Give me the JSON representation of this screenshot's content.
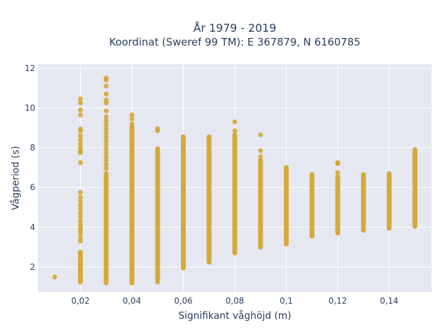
{
  "chart_data": {
    "type": "scatter",
    "title_line1": "År 1979 - 2019",
    "title_line2": "Koordinat (Sweref 99 TM): E 367879, N 6160785",
    "xlabel": "Signifikant våghöjd (m)",
    "ylabel": "Vågperiod (s)",
    "xlim": [
      0.0035,
      0.1565
    ],
    "ylim": [
      0.75,
      12.2
    ],
    "x_ticks": [
      {
        "value": 0.02,
        "label": "0,02"
      },
      {
        "value": 0.04,
        "label": "0,04"
      },
      {
        "value": 0.06,
        "label": "0,06"
      },
      {
        "value": 0.08,
        "label": "0,08"
      },
      {
        "value": 0.1,
        "label": "0,1"
      },
      {
        "value": 0.12,
        "label": "0,12"
      },
      {
        "value": 0.14,
        "label": "0,14"
      }
    ],
    "y_ticks": [
      {
        "value": 2,
        "label": "2"
      },
      {
        "value": 4,
        "label": "4"
      },
      {
        "value": 6,
        "label": "6"
      },
      {
        "value": 8,
        "label": "8"
      },
      {
        "value": 10,
        "label": "10"
      },
      {
        "value": 12,
        "label": "12"
      }
    ],
    "grid": true,
    "colors": {
      "marker": "#d4a32a",
      "plot_bg": "#e5e8f0",
      "grid": "#ffffff",
      "text": "#2a3f5f"
    },
    "columns": [
      {
        "x": 0.01,
        "points": [
          1.5
        ]
      },
      {
        "x": 0.02,
        "min": 1.25,
        "max": 2.75,
        "points": [
          3.3,
          3.45,
          3.65,
          3.8,
          3.95,
          4.1,
          4.3,
          4.5,
          4.7,
          4.9,
          5.1,
          5.3,
          5.5,
          5.75,
          7.25,
          7.75,
          7.85,
          8.0,
          8.2,
          8.4,
          8.6,
          8.85,
          8.95,
          9.65,
          9.9,
          10.25,
          10.45
        ]
      },
      {
        "x": 0.03,
        "min": 1.2,
        "max": 6.7,
        "points": [
          6.95,
          7.15,
          7.35,
          7.55,
          7.75,
          7.95,
          8.15,
          8.35,
          8.55,
          8.75,
          8.95,
          9.15,
          9.35,
          9.55,
          9.85,
          10.25,
          10.4,
          10.7,
          11.1,
          11.4,
          11.5
        ]
      },
      {
        "x": 0.04,
        "min": 1.2,
        "max": 9.05,
        "points": [
          9.2,
          9.45,
          9.65
        ]
      },
      {
        "x": 0.05,
        "min": 1.4,
        "max": 7.95,
        "points": [
          1.25,
          8.85,
          8.95
        ]
      },
      {
        "x": 0.06,
        "min": 1.95,
        "max": 8.55,
        "points": []
      },
      {
        "x": 0.07,
        "min": 2.25,
        "max": 8.55,
        "points": []
      },
      {
        "x": 0.08,
        "min": 2.7,
        "max": 8.65,
        "points": [
          8.85,
          9.3
        ]
      },
      {
        "x": 0.09,
        "min": 3.0,
        "max": 7.35,
        "points": [
          7.55,
          7.85,
          8.65
        ]
      },
      {
        "x": 0.1,
        "min": 3.15,
        "max": 7.0,
        "points": []
      },
      {
        "x": 0.11,
        "min": 3.55,
        "max": 6.65,
        "points": []
      },
      {
        "x": 0.12,
        "min": 3.7,
        "max": 6.55,
        "points": [
          6.75,
          7.2,
          7.25
        ]
      },
      {
        "x": 0.13,
        "min": 3.85,
        "max": 6.65,
        "points": []
      },
      {
        "x": 0.14,
        "min": 3.95,
        "max": 6.7,
        "points": []
      },
      {
        "x": 0.15,
        "min": 4.05,
        "max": 7.9,
        "points": []
      }
    ]
  }
}
